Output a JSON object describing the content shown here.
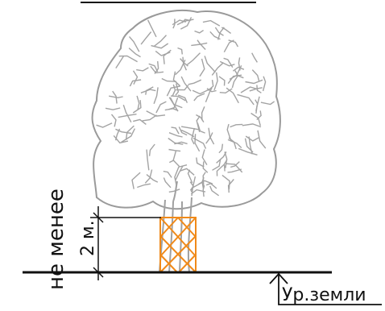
{
  "dimension": {
    "vertical_label": "не менее",
    "value_label": "2 м."
  },
  "ground_level": {
    "label": "Ур.земли"
  },
  "colors": {
    "line": "#111111",
    "tree": "#9a9a9a",
    "protection": "#f08a1a"
  }
}
